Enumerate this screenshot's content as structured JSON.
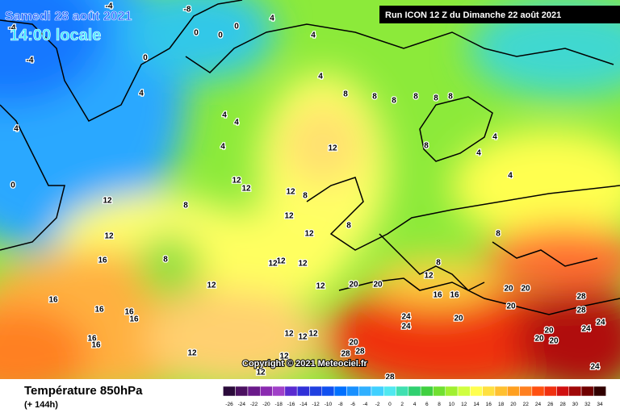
{
  "header": {
    "date": "Samedi 28 août 2021",
    "time": "14:00 locale",
    "run": "Run ICON 12 Z du Dimanche 22 août 2021"
  },
  "copyright": "Copyright © 2021 Meteociel.fr",
  "footer": {
    "title": "Température 850hPa",
    "subtitle": "(+ 144h)"
  },
  "legend": {
    "labels": [
      -26,
      -24,
      -22,
      -20,
      -18,
      -16,
      -14,
      -12,
      -10,
      -8,
      -6,
      -4,
      -2,
      0,
      2,
      4,
      6,
      8,
      10,
      12,
      14,
      16,
      18,
      20,
      22,
      24,
      26,
      28,
      30,
      32,
      34
    ],
    "colors": [
      "#2a0a3a",
      "#4b1060",
      "#6a1a8a",
      "#8a2ab0",
      "#a040c8",
      "#5a2ad0",
      "#3030d8",
      "#2040e0",
      "#1050f0",
      "#0070ff",
      "#1890ff",
      "#30b0ff",
      "#40d0ff",
      "#50e8f0",
      "#40e0b0",
      "#30d070",
      "#40d040",
      "#70e030",
      "#a0f030",
      "#d0ff40",
      "#ffff50",
      "#ffe040",
      "#ffc030",
      "#ffa020",
      "#ff8020",
      "#ff5010",
      "#f03010",
      "#d01010",
      "#a00808",
      "#700000",
      "#300000"
    ]
  },
  "map_labels": [
    -4,
    -8,
    -4,
    0,
    0,
    0,
    4,
    4,
    0,
    -4,
    4,
    4,
    8,
    8,
    8,
    8,
    8,
    8,
    4,
    4,
    4,
    12,
    4,
    8,
    4,
    4,
    12,
    12,
    12,
    8,
    12,
    8,
    12,
    12,
    12,
    16,
    8,
    12,
    12,
    12,
    12,
    12,
    20,
    20,
    16,
    16,
    20,
    20,
    16,
    16,
    16,
    16,
    24,
    24,
    20,
    20,
    28,
    28,
    24,
    20,
    20,
    20,
    24,
    12,
    12,
    12,
    16,
    16,
    12,
    20,
    28,
    28,
    12,
    12,
    24,
    28,
    4,
    8,
    8,
    8,
    12,
    0
  ]
}
